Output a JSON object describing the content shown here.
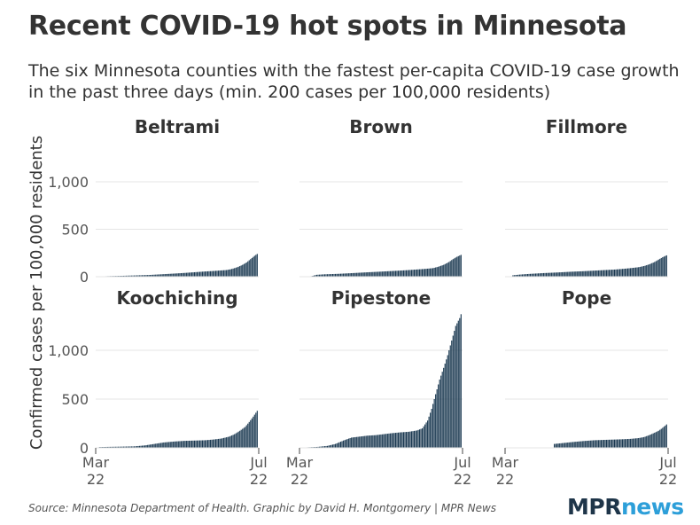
{
  "header": {
    "title": "Recent COVID-19 hot spots in Minnesota",
    "subtitle": "The six Minnesota counties with the fastest per-capita COVID-19 case growth in the past three days (min. 200 cases per 100,000 residents)"
  },
  "footer": {
    "source": "Source: Minnesota Department of Health. Graphic by David H. Montgomery | MPR News",
    "logo_mpr": "MPR",
    "logo_news": "news"
  },
  "colors": {
    "bar": "#1c3a52",
    "gridline": "#e4e4e4",
    "axis_text": "#555555",
    "panel_title": "#333333",
    "logo_mpr": "#1e3549",
    "logo_news": "#2d9fd9"
  },
  "chart_data": {
    "type": "bar",
    "layout": "small-multiples-2x3",
    "ylabel": "Confirmed cases per 100,000 residents",
    "ylim": [
      0,
      1400
    ],
    "yticks": [
      0,
      500,
      1000
    ],
    "ytick_labels": [
      "0",
      "500",
      "1,000"
    ],
    "x_range": [
      "2020-03-22",
      "2020-07-22"
    ],
    "xticks": [
      {
        "date": "2020-03-22",
        "line1": "Mar",
        "line2": "22"
      },
      {
        "date": "2020-07-22",
        "line1": "Jul",
        "line2": "22"
      }
    ],
    "grid": true,
    "series": [
      {
        "name": "Beltrami",
        "points": [
          [
            "2020-03-25",
            3
          ],
          [
            "2020-04-01",
            6
          ],
          [
            "2020-04-10",
            9
          ],
          [
            "2020-04-20",
            13
          ],
          [
            "2020-05-01",
            18
          ],
          [
            "2020-05-10",
            25
          ],
          [
            "2020-05-20",
            33
          ],
          [
            "2020-05-28",
            40
          ],
          [
            "2020-06-05",
            48
          ],
          [
            "2020-06-12",
            55
          ],
          [
            "2020-06-18",
            60
          ],
          [
            "2020-06-24",
            66
          ],
          [
            "2020-06-28",
            70
          ],
          [
            "2020-07-01",
            78
          ],
          [
            "2020-07-04",
            90
          ],
          [
            "2020-07-07",
            105
          ],
          [
            "2020-07-10",
            125
          ],
          [
            "2020-07-13",
            150
          ],
          [
            "2020-07-16",
            185
          ],
          [
            "2020-07-19",
            220
          ],
          [
            "2020-07-21",
            240
          ]
        ]
      },
      {
        "name": "Brown",
        "points": [
          [
            "2020-03-30",
            2
          ],
          [
            "2020-04-04",
            20
          ],
          [
            "2020-04-10",
            25
          ],
          [
            "2020-04-20",
            30
          ],
          [
            "2020-05-01",
            38
          ],
          [
            "2020-05-10",
            45
          ],
          [
            "2020-05-20",
            52
          ],
          [
            "2020-05-28",
            58
          ],
          [
            "2020-06-05",
            64
          ],
          [
            "2020-06-12",
            70
          ],
          [
            "2020-06-18",
            76
          ],
          [
            "2020-06-24",
            82
          ],
          [
            "2020-06-30",
            90
          ],
          [
            "2020-07-04",
            105
          ],
          [
            "2020-07-08",
            125
          ],
          [
            "2020-07-12",
            155
          ],
          [
            "2020-07-15",
            185
          ],
          [
            "2020-07-18",
            210
          ],
          [
            "2020-07-21",
            230
          ]
        ]
      },
      {
        "name": "Fillmore",
        "points": [
          [
            "2020-03-28",
            15
          ],
          [
            "2020-04-02",
            22
          ],
          [
            "2020-04-10",
            30
          ],
          [
            "2020-04-20",
            38
          ],
          [
            "2020-05-01",
            45
          ],
          [
            "2020-05-10",
            52
          ],
          [
            "2020-05-20",
            58
          ],
          [
            "2020-05-28",
            64
          ],
          [
            "2020-06-05",
            70
          ],
          [
            "2020-06-12",
            75
          ],
          [
            "2020-06-18",
            82
          ],
          [
            "2020-06-24",
            90
          ],
          [
            "2020-06-30",
            100
          ],
          [
            "2020-07-04",
            112
          ],
          [
            "2020-07-08",
            130
          ],
          [
            "2020-07-12",
            155
          ],
          [
            "2020-07-15",
            180
          ],
          [
            "2020-07-18",
            205
          ],
          [
            "2020-07-21",
            225
          ]
        ]
      },
      {
        "name": "Koochiching",
        "points": [
          [
            "2020-03-25",
            8
          ],
          [
            "2020-04-01",
            10
          ],
          [
            "2020-04-10",
            12
          ],
          [
            "2020-04-20",
            15
          ],
          [
            "2020-04-28",
            25
          ],
          [
            "2020-05-05",
            40
          ],
          [
            "2020-05-12",
            55
          ],
          [
            "2020-05-20",
            65
          ],
          [
            "2020-05-28",
            72
          ],
          [
            "2020-06-05",
            75
          ],
          [
            "2020-06-12",
            78
          ],
          [
            "2020-06-18",
            85
          ],
          [
            "2020-06-24",
            95
          ],
          [
            "2020-06-30",
            115
          ],
          [
            "2020-07-04",
            140
          ],
          [
            "2020-07-08",
            175
          ],
          [
            "2020-07-12",
            215
          ],
          [
            "2020-07-15",
            265
          ],
          [
            "2020-07-18",
            320
          ],
          [
            "2020-07-21",
            380
          ]
        ]
      },
      {
        "name": "Pipestone",
        "points": [
          [
            "2020-03-28",
            5
          ],
          [
            "2020-04-05",
            10
          ],
          [
            "2020-04-12",
            20
          ],
          [
            "2020-04-18",
            40
          ],
          [
            "2020-04-24",
            75
          ],
          [
            "2020-04-30",
            105
          ],
          [
            "2020-05-06",
            115
          ],
          [
            "2020-05-12",
            125
          ],
          [
            "2020-05-18",
            130
          ],
          [
            "2020-05-24",
            140
          ],
          [
            "2020-05-30",
            150
          ],
          [
            "2020-06-05",
            158
          ],
          [
            "2020-06-12",
            165
          ],
          [
            "2020-06-18",
            178
          ],
          [
            "2020-06-22",
            200
          ],
          [
            "2020-06-26",
            280
          ],
          [
            "2020-06-29",
            400
          ],
          [
            "2020-07-02",
            550
          ],
          [
            "2020-07-05",
            700
          ],
          [
            "2020-07-08",
            820
          ],
          [
            "2020-07-11",
            950
          ],
          [
            "2020-07-14",
            1100
          ],
          [
            "2020-07-17",
            1250
          ],
          [
            "2020-07-20",
            1330
          ],
          [
            "2020-07-21",
            1370
          ]
        ]
      },
      {
        "name": "Pope",
        "points": [
          [
            "2020-04-28",
            40
          ],
          [
            "2020-05-05",
            50
          ],
          [
            "2020-05-12",
            60
          ],
          [
            "2020-05-20",
            70
          ],
          [
            "2020-05-28",
            78
          ],
          [
            "2020-06-05",
            82
          ],
          [
            "2020-06-12",
            85
          ],
          [
            "2020-06-18",
            88
          ],
          [
            "2020-06-24",
            92
          ],
          [
            "2020-06-30",
            100
          ],
          [
            "2020-07-04",
            110
          ],
          [
            "2020-07-08",
            130
          ],
          [
            "2020-07-12",
            155
          ],
          [
            "2020-07-15",
            175
          ],
          [
            "2020-07-18",
            205
          ],
          [
            "2020-07-21",
            240
          ]
        ]
      }
    ]
  }
}
